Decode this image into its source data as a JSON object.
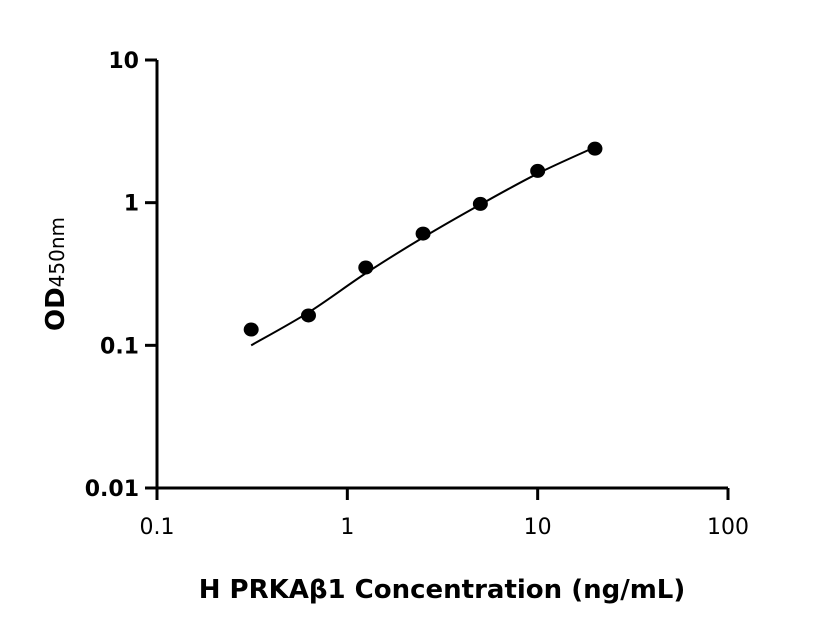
{
  "chart_data": {
    "type": "scatter",
    "xlabel": "H PRKAβ1 Concentration (ng/mL)",
    "ylabel": "OD",
    "ylabel_sub": "450nm",
    "x_scale": "log",
    "y_scale": "log",
    "xlim": [
      0.1,
      100
    ],
    "ylim": [
      0.01,
      10
    ],
    "x_ticks": [
      "0.1",
      "1",
      "10",
      "100"
    ],
    "y_ticks": [
      "0.01",
      "0.1",
      "1",
      "10"
    ],
    "grid": false,
    "points": {
      "x": [
        0.3125,
        0.625,
        1.25,
        2.5,
        5,
        10,
        20
      ],
      "y": [
        0.129,
        0.162,
        0.351,
        0.607,
        0.98,
        1.67,
        2.39
      ]
    },
    "fit_curve": {
      "x": [
        0.3125,
        0.625,
        1.25,
        2.5,
        5,
        10,
        20
      ],
      "y": [
        0.1,
        0.17,
        0.32,
        0.57,
        0.97,
        1.6,
        2.45
      ]
    },
    "colors": {
      "points": "#000000",
      "line": "#000000"
    }
  }
}
